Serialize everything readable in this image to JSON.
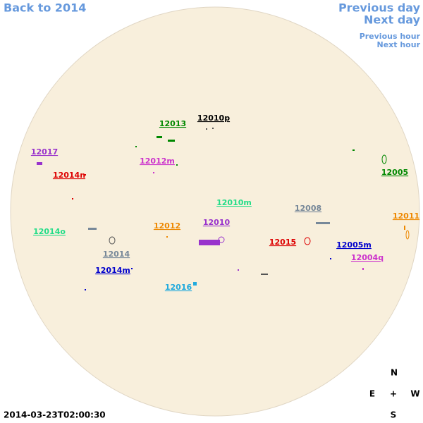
{
  "header": {
    "back": "Back to 2014",
    "previous_day": "Previous day",
    "next_day": "Next day",
    "previous_hour": "Previous hour",
    "next_hour": "Next hour"
  },
  "regions": [
    {
      "label": "12010p",
      "color": "#000000"
    },
    {
      "label": "12013",
      "color": "#008800"
    },
    {
      "label": "12017",
      "color": "#9933cc"
    },
    {
      "label": "12012m",
      "color": "#cc33cc"
    },
    {
      "label": "12014n",
      "color": "#dd0000"
    },
    {
      "label": "12005",
      "color": "#008800"
    },
    {
      "label": "12010m",
      "color": "#22dd88"
    },
    {
      "label": "12008",
      "color": "#778899"
    },
    {
      "label": "12011",
      "color": "#ee8800"
    },
    {
      "label": "12014o",
      "color": "#22dd88"
    },
    {
      "label": "12012",
      "color": "#ee8800"
    },
    {
      "label": "12010",
      "color": "#9933cc"
    },
    {
      "label": "12015",
      "color": "#dd0000"
    },
    {
      "label": "12005m",
      "color": "#0000cc"
    },
    {
      "label": "12014",
      "color": "#778899"
    },
    {
      "label": "12004q",
      "color": "#cc33cc"
    },
    {
      "label": "12014m",
      "color": "#0000cc"
    },
    {
      "label": "12016",
      "color": "#22aadd"
    }
  ],
  "compass": {
    "north": "N",
    "east": "E",
    "center": "+",
    "west": "W",
    "south": "S"
  },
  "timestamp": "2014-03-23T02:00:30"
}
